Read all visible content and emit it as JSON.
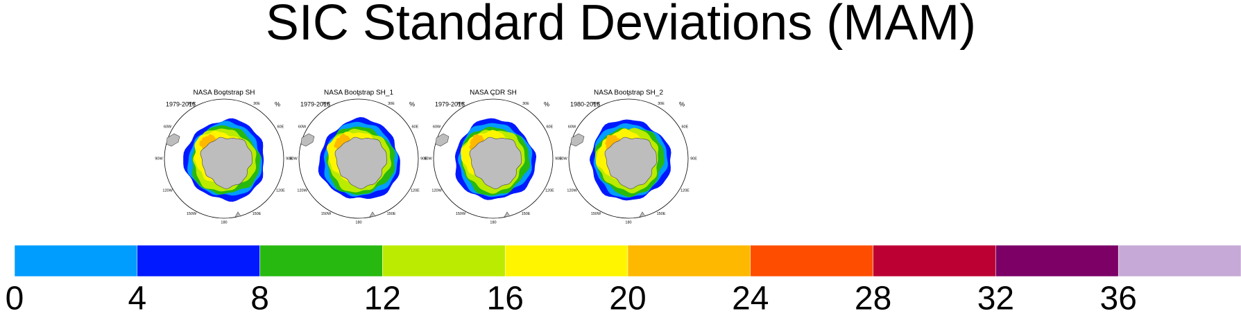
{
  "title": "SIC Standard Deviations (MAM)",
  "panels": [
    {
      "title": "NASA Bootstrap SH",
      "period": "1979-2016",
      "unit": "%"
    },
    {
      "title": "NASA Bootstrap SH_1",
      "period": "1979-2016",
      "unit": "%"
    },
    {
      "title": "NASA CDR SH",
      "period": "1979-2016",
      "unit": "%"
    },
    {
      "title": "NASA Bootstrap SH_2",
      "period": "1980-2016",
      "unit": "%"
    }
  ],
  "map_labels": [
    "0",
    "30E",
    "60E",
    "90E",
    "120E",
    "150E",
    "180",
    "150W",
    "120W",
    "90W",
    "60W",
    "30W"
  ],
  "colorbar": {
    "colors": [
      "#009dff",
      "#0019ff",
      "#27b90f",
      "#bbeb00",
      "#fff500",
      "#ffb800",
      "#ff4d00",
      "#bd0034",
      "#7c0066",
      "#c6a9d6"
    ],
    "lim": [
      0,
      40
    ],
    "ticks": [
      0,
      4,
      8,
      12,
      16,
      20,
      24,
      28,
      32,
      36
    ]
  }
}
